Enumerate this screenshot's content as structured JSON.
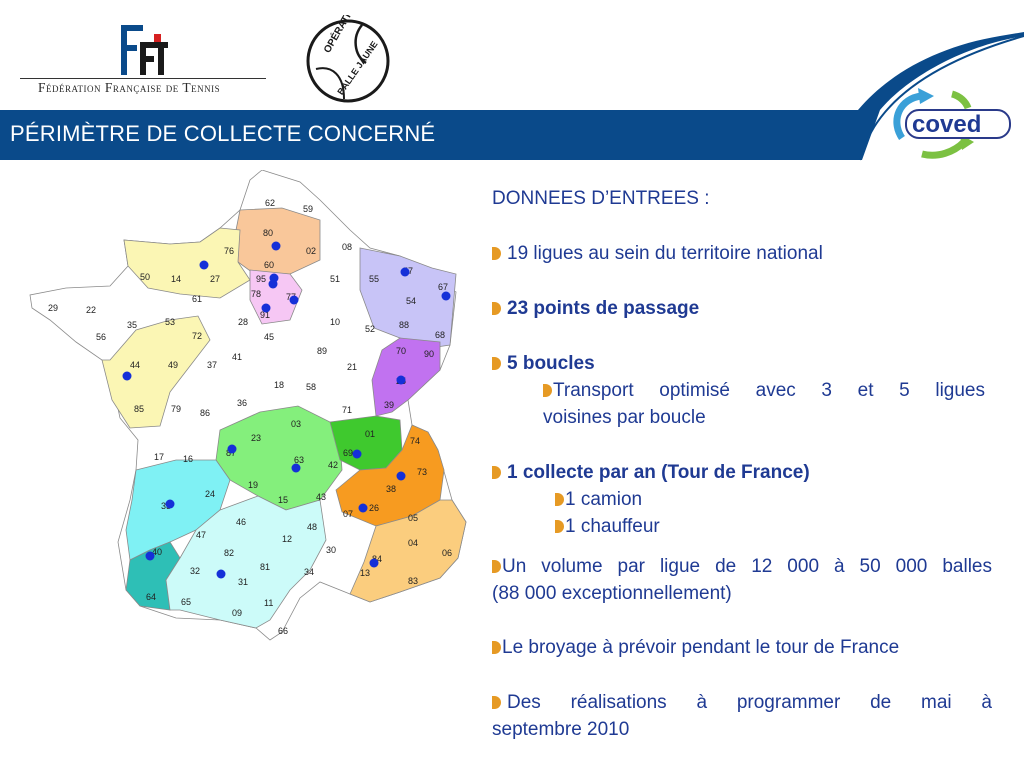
{
  "header": {
    "fft_org_name": "Fédération Française de Tennis",
    "fft_logo_letters": "FFT",
    "operation_logo_line1": "OPÉRATION",
    "operation_logo_line2": "BALLE JAUNE",
    "coved_logo_text": "coved",
    "title": "PÉRIMÈTRE DE COLLECTE CONCERNÉ"
  },
  "colors": {
    "banner_blue": "#0a4a8a",
    "text_blue": "#1f3a93",
    "bullet_orange": "#e69a24",
    "dot_blue": "#1530d8"
  },
  "map": {
    "departments": [
      "62",
      "59",
      "80",
      "02",
      "08",
      "76",
      "60",
      "95",
      "14",
      "27",
      "50",
      "61",
      "78",
      "77",
      "91",
      "51",
      "55",
      "57",
      "67",
      "54",
      "88",
      "68",
      "29",
      "22",
      "35",
      "56",
      "53",
      "72",
      "28",
      "45",
      "10",
      "52",
      "70",
      "90",
      "89",
      "41",
      "37",
      "44",
      "49",
      "18",
      "58",
      "21",
      "25",
      "39",
      "36",
      "71",
      "85",
      "79",
      "86",
      "03",
      "01",
      "74",
      "23",
      "87",
      "63",
      "42",
      "69",
      "73",
      "17",
      "16",
      "19",
      "38",
      "24",
      "33",
      "15",
      "43",
      "26",
      "05",
      "07",
      "46",
      "48",
      "04",
      "47",
      "12",
      "84",
      "06",
      "30",
      "40",
      "82",
      "81",
      "13",
      "83",
      "32",
      "34",
      "31",
      "64",
      "65",
      "11",
      "09",
      "66"
    ],
    "legend_none": ""
  },
  "content": {
    "heading": "DONNEES D’ENTREES :",
    "item1": "19 ligues au sein du territoire national",
    "item2": "23 points de passage",
    "item3": "5 boucles",
    "item3_sub_line1": "Transport optimisé avec 3 et 5 ligues",
    "item3_sub_line2": "voisines par boucle",
    "item4": "1 collecte par an (Tour de France)",
    "item4_sub1": "1 camion",
    "item4_sub2": "1 chauffeur",
    "item5_line1": "Un volume par ligue de 12 000 à 50 000 balles",
    "item5_line2": "(88 000 exceptionnellement)",
    "item6": "Le broyage à prévoir pendant le tour de France",
    "item7_line1": "Des réalisations à programmer de mai à",
    "item7_line2": "septembre 2010"
  }
}
